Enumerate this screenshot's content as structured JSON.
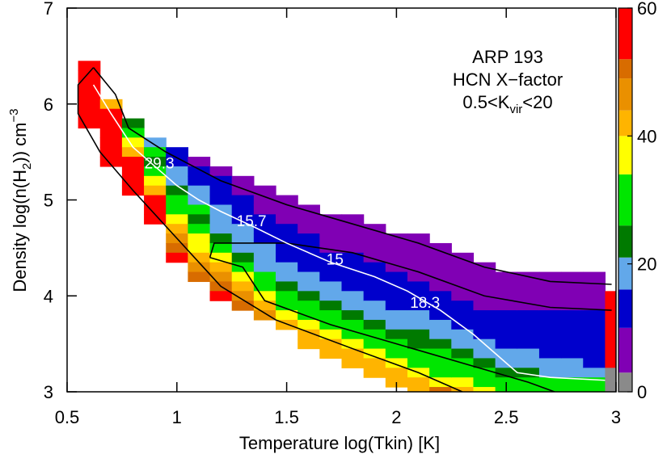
{
  "chart_data": {
    "type": "heatmap",
    "annotation": [
      "ARP 193",
      "HCN X−factor",
      {
        "text": "0.5<K",
        "sub": "vir",
        "after": "<20"
      }
    ],
    "xlabel": "Temperature log(Tkin) [K]",
    "ylabel": {
      "text": "Density log(n(H",
      "sub": "2",
      "mid": ")) cm",
      "sup": "−3"
    },
    "xlim": [
      0.5,
      3.0
    ],
    "ylim": [
      3,
      7
    ],
    "xticks": [
      0.5,
      1,
      1.5,
      2,
      2.5,
      3
    ],
    "yticks": [
      3,
      4,
      5,
      6,
      7
    ],
    "dx": 0.1,
    "dy": 0.1,
    "columns": [
      {
        "x": 0.6,
        "ytop": 6.4,
        "values": [
          58,
          58,
          58,
          58,
          58,
          58,
          58
        ]
      },
      {
        "x": 0.7,
        "ytop": 6.0,
        "values": [
          42,
          58,
          58,
          58,
          58,
          58,
          58
        ]
      },
      {
        "x": 0.8,
        "ytop": 5.8,
        "values": [
          24,
          30,
          37,
          42,
          58,
          58,
          58,
          58
        ]
      },
      {
        "x": 0.9,
        "ytop": 5.6,
        "values": [
          18,
          30,
          24,
          33,
          37,
          42,
          58,
          58,
          58
        ]
      },
      {
        "x": 1.0,
        "ytop": 5.5,
        "values": [
          12,
          12,
          18,
          18,
          24,
          30,
          33,
          37,
          42,
          46,
          50,
          58
        ]
      },
      {
        "x": 1.1,
        "ytop": 5.4,
        "values": [
          7,
          12,
          12,
          18,
          18,
          30,
          24,
          30,
          37,
          37,
          42,
          46,
          50
        ]
      },
      {
        "x": 1.2,
        "ytop": 5.3,
        "values": [
          7,
          12,
          12,
          12,
          18,
          18,
          18,
          24,
          30,
          37,
          42,
          46,
          50,
          58
        ]
      },
      {
        "x": 1.3,
        "ytop": 5.2,
        "values": [
          7,
          7,
          12,
          12,
          12,
          18,
          18,
          18,
          24,
          30,
          37,
          42,
          46,
          50
        ]
      },
      {
        "x": 1.4,
        "ytop": 5.1,
        "values": [
          7,
          7,
          7,
          12,
          12,
          12,
          18,
          18,
          18,
          30,
          33,
          37,
          42,
          46
        ]
      },
      {
        "x": 1.5,
        "ytop": 5.0,
        "values": [
          7,
          7,
          7,
          12,
          12,
          12,
          12,
          18,
          18,
          24,
          30,
          33,
          37,
          42
        ]
      },
      {
        "x": 1.6,
        "ytop": 4.9,
        "values": [
          7,
          7,
          7,
          12,
          12,
          12,
          12,
          18,
          18,
          24,
          30,
          33,
          37,
          42,
          42
        ]
      },
      {
        "x": 1.7,
        "ytop": 4.8,
        "values": [
          7,
          7,
          7,
          7,
          12,
          12,
          12,
          18,
          18,
          24,
          30,
          33,
          37,
          42,
          42
        ]
      },
      {
        "x": 1.8,
        "ytop": 4.8,
        "values": [
          7,
          7,
          7,
          7,
          12,
          12,
          12,
          12,
          18,
          18,
          24,
          30,
          33,
          37,
          42,
          42
        ]
      },
      {
        "x": 1.9,
        "ytop": 4.7,
        "values": [
          7,
          7,
          7,
          7,
          12,
          12,
          12,
          12,
          18,
          18,
          24,
          30,
          33,
          37,
          42,
          42
        ]
      },
      {
        "x": 2.0,
        "ytop": 4.6,
        "values": [
          7,
          7,
          7,
          7,
          12,
          12,
          12,
          12,
          18,
          18,
          24,
          30,
          33,
          37,
          42,
          42
        ]
      },
      {
        "x": 2.1,
        "ytop": 4.6,
        "values": [
          7,
          7,
          7,
          7,
          7,
          12,
          12,
          12,
          18,
          18,
          24,
          24,
          30,
          33,
          37,
          42,
          42
        ]
      },
      {
        "x": 2.2,
        "ytop": 4.5,
        "values": [
          7,
          7,
          7,
          7,
          7,
          12,
          12,
          12,
          18,
          18,
          24,
          30,
          30,
          33,
          37,
          50
        ]
      },
      {
        "x": 2.3,
        "ytop": 4.4,
        "values": [
          7,
          7,
          7,
          7,
          7,
          12,
          12,
          12,
          18,
          18,
          24,
          30,
          33,
          37,
          42
        ]
      },
      {
        "x": 2.4,
        "ytop": 4.3,
        "values": [
          7,
          7,
          7,
          7,
          7,
          12,
          12,
          12,
          18,
          18,
          24,
          30,
          33,
          37
        ]
      },
      {
        "x": 2.5,
        "ytop": 4.2,
        "values": [
          7,
          7,
          7,
          7,
          12,
          12,
          12,
          12,
          18,
          18,
          24,
          30,
          33
        ]
      },
      {
        "x": 2.6,
        "ytop": 4.2,
        "values": [
          7,
          7,
          7,
          7,
          12,
          12,
          12,
          12,
          18,
          18,
          24,
          30,
          33
        ]
      },
      {
        "x": 2.7,
        "ytop": 4.2,
        "values": [
          7,
          7,
          7,
          7,
          12,
          12,
          12,
          12,
          12,
          18,
          18,
          30,
          33
        ]
      },
      {
        "x": 2.8,
        "ytop": 4.2,
        "values": [
          7,
          7,
          7,
          7,
          12,
          12,
          12,
          12,
          12,
          18,
          18,
          30,
          33
        ]
      },
      {
        "x": 2.9,
        "ytop": 4.2,
        "values": [
          7,
          7,
          7,
          7,
          12,
          12,
          12,
          12,
          12,
          12,
          18,
          30,
          33
        ]
      },
      {
        "x": 3.0,
        "ytop": 4.0,
        "values": [
          58,
          58,
          58,
          58,
          58,
          58,
          58,
          58,
          2,
          2,
          2
        ]
      }
    ],
    "colorbar": {
      "bins": [
        [
          0,
          3
        ],
        [
          3,
          10
        ],
        [
          10,
          16
        ],
        [
          16,
          21
        ],
        [
          21,
          26
        ],
        [
          26,
          34
        ],
        [
          34,
          40
        ],
        [
          40,
          44
        ],
        [
          44,
          49
        ],
        [
          49,
          52
        ],
        [
          52,
          60
        ]
      ],
      "colors": [
        "#8a8a8a",
        "#8000b4",
        "#0000cc",
        "#62a8ea",
        "#007a00",
        "#00e600",
        "#ffff00",
        "#ffb400",
        "#ea9000",
        "#d86c00",
        "#ff0000"
      ],
      "lim": [
        0,
        60
      ],
      "ticks": [
        0,
        20,
        40,
        60
      ]
    },
    "median": {
      "color": "#ffffff",
      "x": [
        0.62,
        0.7,
        0.8,
        0.9,
        1.0,
        1.1,
        1.2,
        1.35,
        1.5,
        1.7,
        1.9,
        2.05,
        2.2,
        2.35,
        2.45,
        2.55,
        2.7,
        2.95
      ],
      "y": [
        6.2,
        5.9,
        5.55,
        5.35,
        5.15,
        5.0,
        4.88,
        4.72,
        4.55,
        4.35,
        4.2,
        4.05,
        3.85,
        3.6,
        3.4,
        3.2,
        3.15,
        3.12
      ],
      "labels": [
        {
          "text": "29.3",
          "x": 0.92,
          "y": 5.37
        },
        {
          "text": "15.7",
          "x": 1.34,
          "y": 4.77
        },
        {
          "text": "15",
          "x": 1.72,
          "y": 4.37
        },
        {
          "text": "18.3",
          "x": 2.13,
          "y": 3.92
        }
      ]
    },
    "contours": [
      {
        "x": [
          0.62,
          0.72,
          0.78,
          0.95,
          1.2,
          1.5,
          1.8,
          2.1,
          2.4,
          2.7,
          2.98
        ],
        "y": [
          6.38,
          6.1,
          5.75,
          5.5,
          5.2,
          4.95,
          4.75,
          4.55,
          4.3,
          4.15,
          4.12
        ]
      },
      {
        "x": [
          0.62,
          0.55,
          0.55,
          0.65,
          0.8,
          1.0,
          1.2,
          1.45,
          1.8,
          2.1,
          2.3
        ],
        "y": [
          6.38,
          6.2,
          5.9,
          5.5,
          5.1,
          4.6,
          4.1,
          3.75,
          3.45,
          3.2,
          3.0
        ]
      },
      {
        "x": [
          1.15,
          1.17,
          1.3,
          1.5,
          1.8,
          2.1,
          2.4,
          2.7,
          2.98
        ],
        "y": [
          4.4,
          4.55,
          4.55,
          4.55,
          4.45,
          4.25,
          4.0,
          3.88,
          3.85
        ]
      },
      {
        "x": [
          1.15,
          1.3,
          1.4,
          1.7,
          2.0,
          2.3,
          2.6,
          2.72
        ],
        "y": [
          4.4,
          4.3,
          3.95,
          3.7,
          3.5,
          3.3,
          3.1,
          3.0
        ]
      }
    ]
  }
}
